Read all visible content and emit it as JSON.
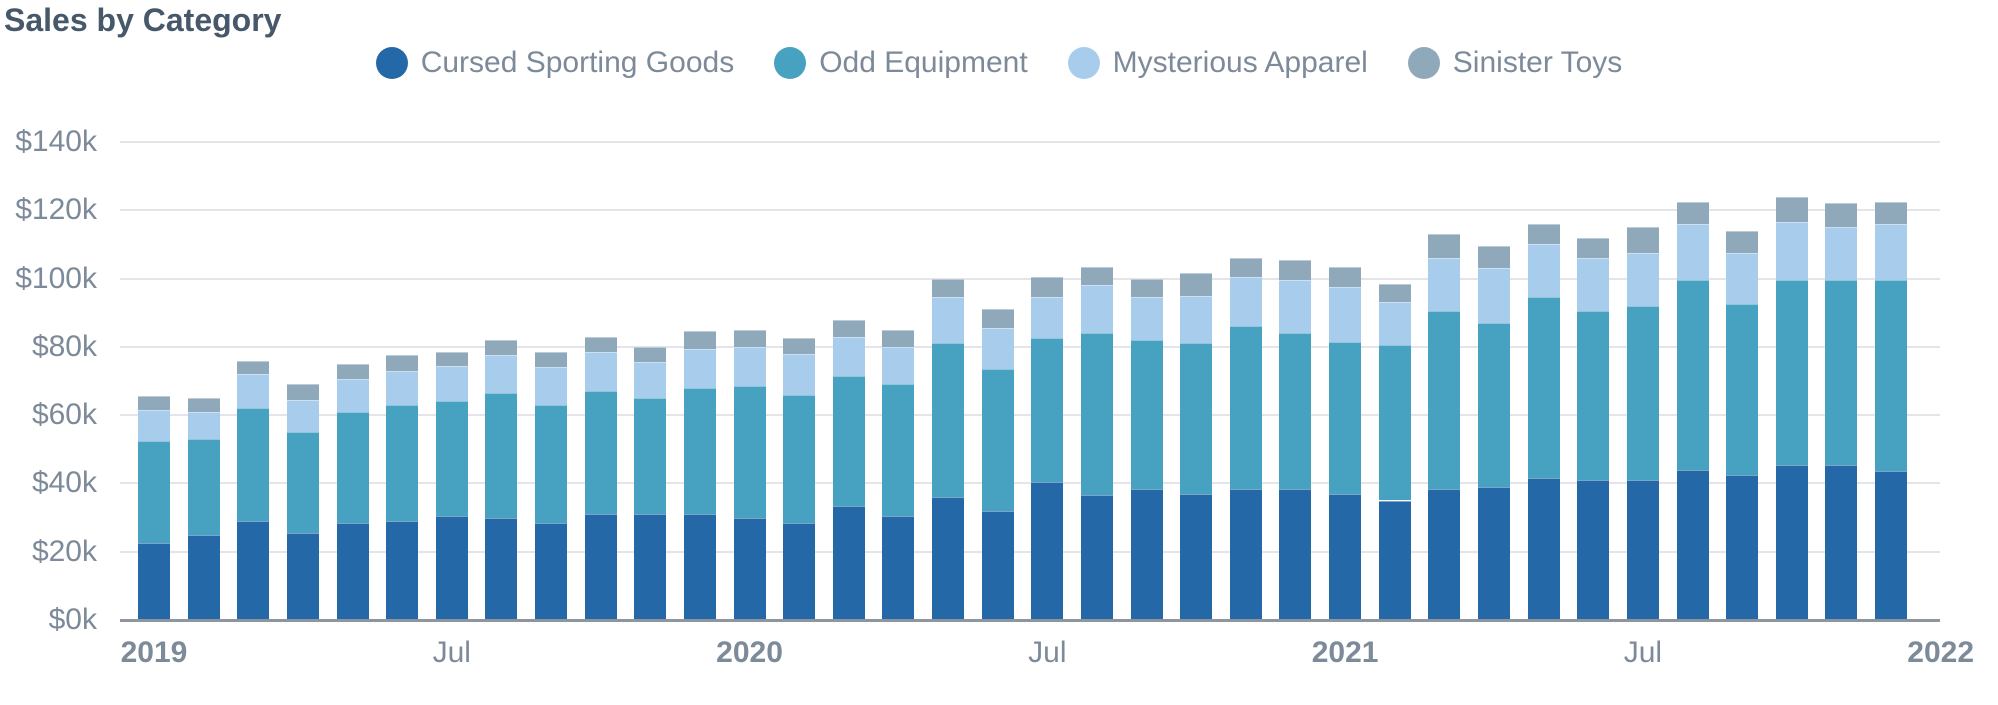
{
  "page": {
    "title": "Sales by Category"
  },
  "colors": {
    "title_text": "#46586a",
    "axis_text": "#7c8a99",
    "gridline": "#e4e4e9",
    "axis_line": "#8d959e",
    "background": "#ffffff"
  },
  "chart_data": {
    "type": "bar",
    "stacked": true,
    "title": "Sales by Category",
    "unit": "USD thousands",
    "grid": true,
    "legend_position": "top-center",
    "x": [
      "Jan 2019",
      "Feb 2019",
      "Mar 2019",
      "Apr 2019",
      "May 2019",
      "Jun 2019",
      "Jul 2019",
      "Aug 2019",
      "Sep 2019",
      "Oct 2019",
      "Nov 2019",
      "Dec 2019",
      "Jan 2020",
      "Feb 2020",
      "Mar 2020",
      "Apr 2020",
      "May 2020",
      "Jun 2020",
      "Jul 2020",
      "Aug 2020",
      "Sep 2020",
      "Oct 2020",
      "Nov 2020",
      "Dec 2020",
      "Jan 2021",
      "Feb 2021",
      "Mar 2021",
      "Apr 2021",
      "May 2021",
      "Jun 2021",
      "Jul 2021",
      "Aug 2021",
      "Sep 2021",
      "Oct 2021",
      "Nov 2021",
      "Dec 2021"
    ],
    "series": [
      {
        "name": "Cursed Sporting Goods",
        "color": "#2568a8",
        "values": [
          22.5,
          25,
          29,
          25.5,
          28.5,
          29,
          30.5,
          30,
          28.5,
          31,
          31,
          31,
          30,
          28.5,
          33.5,
          30.5,
          36,
          32,
          40.5,
          36.5,
          38.5,
          37,
          38.5,
          38.5,
          37,
          35,
          38.5,
          39,
          41.5,
          41,
          41,
          44,
          42.5,
          45.5,
          45.5,
          43.5
        ]
      },
      {
        "name": "Odd Equipment",
        "color": "#47a1c0",
        "values": [
          30,
          28,
          33,
          29.5,
          32.5,
          34,
          33.5,
          36.5,
          34.5,
          36,
          34,
          37,
          38.5,
          37.5,
          38,
          38.5,
          45,
          41.5,
          42,
          47.5,
          43.5,
          44,
          47.5,
          45.5,
          44.5,
          45.5,
          52,
          48,
          53,
          49.5,
          51,
          55.5,
          50,
          54,
          54,
          56
        ]
      },
      {
        "name": "Mysterious Apparel",
        "color": "#a8cdec",
        "values": [
          9,
          8,
          10,
          9.5,
          9.5,
          10,
          10.5,
          11,
          11,
          11.5,
          10.5,
          11.5,
          11.5,
          12,
          11.5,
          11,
          13.5,
          12,
          12,
          14,
          12.5,
          14,
          14.5,
          15.5,
          16,
          12.5,
          15.5,
          16,
          15.5,
          15.5,
          15.5,
          16.5,
          15,
          17,
          15.5,
          16.5
        ]
      },
      {
        "name": "Sinister Toys",
        "color": "#90a9ba",
        "values": [
          4,
          4,
          4,
          4.5,
          4.5,
          4.5,
          4,
          4.5,
          4.5,
          4.5,
          4.5,
          5,
          5,
          4.5,
          5,
          5,
          5.5,
          5.5,
          6,
          5.5,
          5.5,
          6.5,
          5.5,
          6,
          6,
          5.5,
          7,
          6.5,
          6,
          6,
          7.5,
          6.5,
          6.5,
          7.5,
          7,
          6.5
        ]
      }
    ],
    "y_axis": {
      "min": 0,
      "max": 140,
      "ticks": [
        {
          "value": 0,
          "label": "$0k"
        },
        {
          "value": 20,
          "label": "$20k"
        },
        {
          "value": 40,
          "label": "$40k"
        },
        {
          "value": 60,
          "label": "$60k"
        },
        {
          "value": 80,
          "label": "$80k"
        },
        {
          "value": 100,
          "label": "$100k"
        },
        {
          "value": 120,
          "label": "$120k"
        },
        {
          "value": 140,
          "label": "$140k"
        }
      ]
    },
    "x_axis": {
      "ticks": [
        {
          "label": "2019",
          "bold": true,
          "bar_index": 0
        },
        {
          "label": "Jul",
          "bold": false,
          "bar_index": 6
        },
        {
          "label": "2020",
          "bold": true,
          "bar_index": 12
        },
        {
          "label": "Jul",
          "bold": false,
          "bar_index": 18
        },
        {
          "label": "2021",
          "bold": true,
          "bar_index": 24
        },
        {
          "label": "Jul",
          "bold": false,
          "bar_index": 30
        },
        {
          "label": "2022",
          "bold": true,
          "bar_index": 36
        }
      ]
    }
  }
}
